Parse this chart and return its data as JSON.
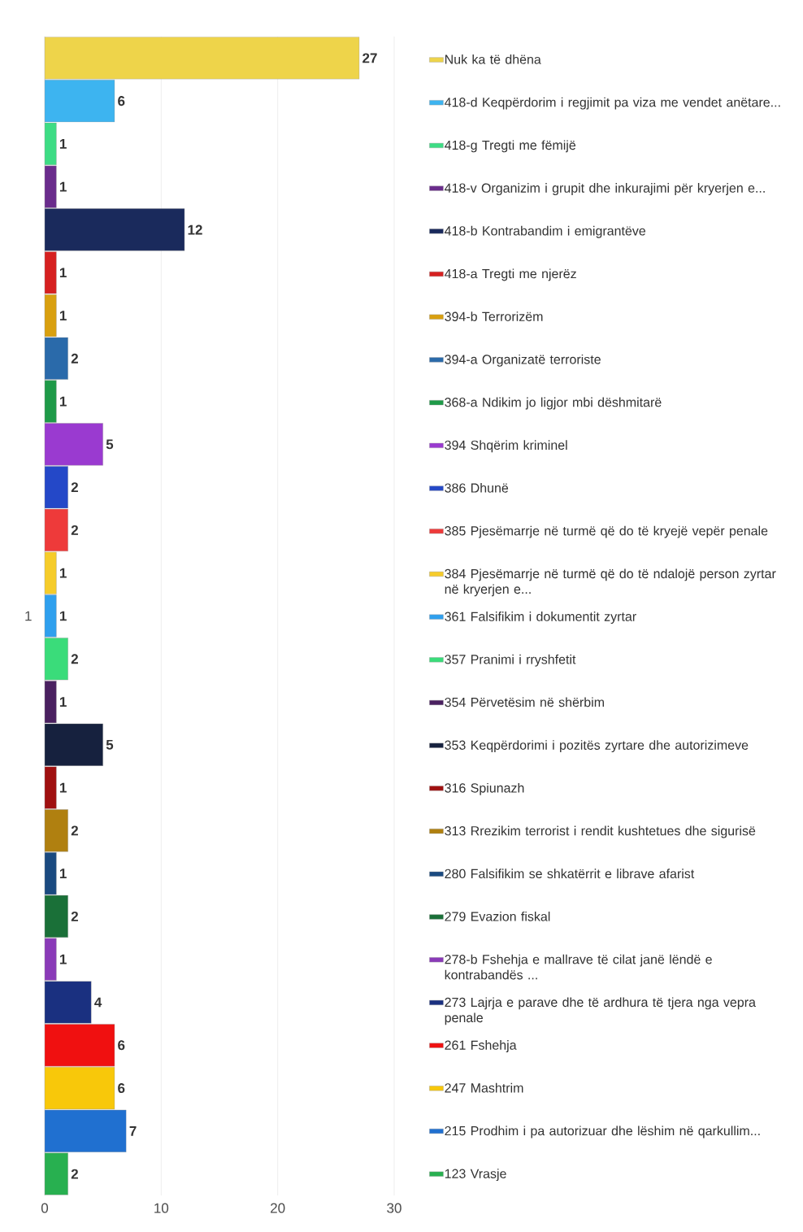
{
  "chart_data": {
    "type": "bar",
    "orientation": "horizontal",
    "categories": [
      "1"
    ],
    "xlim": [
      0,
      30
    ],
    "xticks": [
      0,
      10,
      20,
      30
    ],
    "grid": "x",
    "legend": "right",
    "data_labels": true,
    "series": [
      {
        "name": "Nuk ka të dhëna",
        "color": "#eed44a",
        "values": [
          27
        ]
      },
      {
        "name": "418-d Keqpërdorim i regjimit pa viza me vendet anëtare...",
        "color": "#3db4f0",
        "values": [
          6
        ]
      },
      {
        "name": "418-g  Tregti me fëmijë",
        "color": "#3ddc84",
        "values": [
          1
        ]
      },
      {
        "name": "418-v Organizim i grupit dhe inkurajimi për kryerjen e...",
        "color": "#6a2c8c",
        "values": [
          1
        ]
      },
      {
        "name": "418-b Kontrabandim i emigrantëve",
        "color": "#1a2a5c",
        "values": [
          12
        ]
      },
      {
        "name": "418-a Tregti me njerëz",
        "color": "#d62020",
        "values": [
          1
        ]
      },
      {
        "name": "394-b Terrorizëm",
        "color": "#d9a00f",
        "values": [
          1
        ]
      },
      {
        "name": "394-a Organizatë terroriste",
        "color": "#2a6aaa",
        "values": [
          2
        ]
      },
      {
        "name": "368-a Ndikim jo ligjor mbi dëshmitarë",
        "color": "#1e9a48",
        "values": [
          1
        ]
      },
      {
        "name": "394 Shqërim kriminel",
        "color": "#9a3ad0",
        "values": [
          5
        ]
      },
      {
        "name": "386 Dhunë",
        "color": "#2448c8",
        "values": [
          2
        ]
      },
      {
        "name": "385 Pjesëmarrje në turmë që do të kryejë vepër penale",
        "color": "#ee3a3a",
        "values": [
          2
        ]
      },
      {
        "name": "384 Pjesëmarrje në turmë që do të ndalojë person zyrtar në kryerjen e...",
        "color": "#f6cc2a",
        "values": [
          1
        ]
      },
      {
        "name": "361 Falsifikim i dokumentit zyrtar",
        "color": "#2fa0ee",
        "values": [
          1
        ]
      },
      {
        "name": "357 Pranimi i rryshfetit",
        "color": "#3adc7a",
        "values": [
          2
        ]
      },
      {
        "name": "354 Përvetësim në shërbim",
        "color": "#4a2060",
        "values": [
          1
        ]
      },
      {
        "name": "353 Keqpërdorimi i pozitës zyrtare dhe autorizimeve",
        "color": "#16213e",
        "values": [
          5
        ]
      },
      {
        "name": "316 Spiunazh",
        "color": "#a01010",
        "values": [
          1
        ]
      },
      {
        "name": "313 Rrezikim terrorist i rendit kushtetues dhe sigurisë",
        "color": "#b08010",
        "values": [
          2
        ]
      },
      {
        "name": "280 Falsifikim se shkatërrit e librave afarist",
        "color": "#1a4a80",
        "values": [
          1
        ]
      },
      {
        "name": "279 Evazion fiskal",
        "color": "#1a7038",
        "values": [
          2
        ]
      },
      {
        "name": "278-b Fshehja e mallrave të cilat janë lëndë e kontrabandës ...",
        "color": "#8a3ab8",
        "values": [
          1
        ]
      },
      {
        "name": "273  Lajrja e parave dhe të ardhura të tjera nga vepra penale",
        "color": "#1a3080",
        "values": [
          4
        ]
      },
      {
        "name": "261 Fshehja",
        "color": "#f01010",
        "values": [
          6
        ]
      },
      {
        "name": "247 Mashtrim",
        "color": "#f8c80a",
        "values": [
          6
        ]
      },
      {
        "name": "215 Prodhim i pa autorizuar dhe lëshim në qarkullim...",
        "color": "#2070d0",
        "values": [
          7
        ]
      },
      {
        "name": "123 Vrasje",
        "color": "#28b050",
        "values": [
          2
        ]
      }
    ]
  }
}
